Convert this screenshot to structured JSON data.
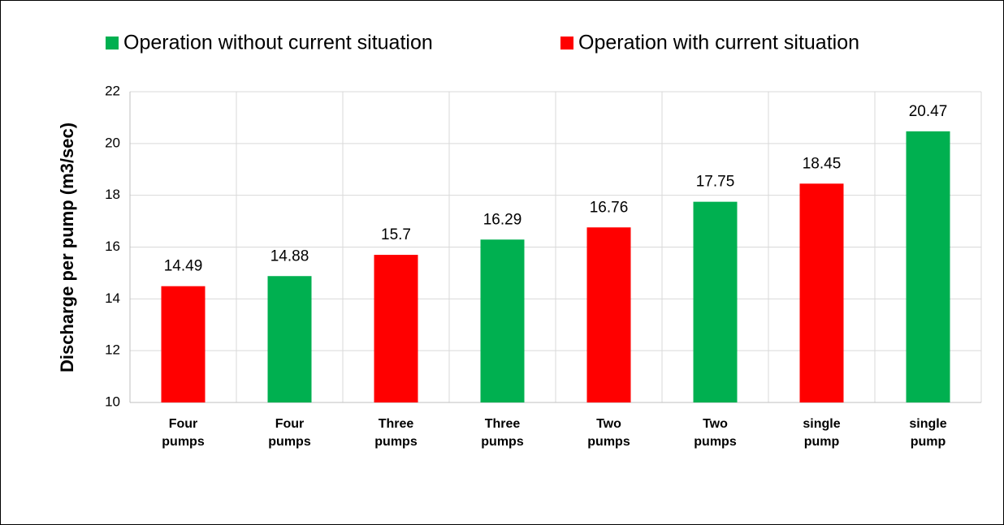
{
  "chart_data": {
    "type": "bar",
    "y_label": "Discharge  per  pump (m3/sec)",
    "categories": [
      "Four pumps",
      "Four pumps",
      "Three pumps",
      "Three pumps",
      "Two pumps",
      "Two pumps",
      "single pump",
      "single pump"
    ],
    "series": [
      {
        "name": "Operation without current situation",
        "color": "#00b050",
        "values": [
          null,
          14.88,
          null,
          16.29,
          null,
          17.75,
          null,
          20.47
        ]
      },
      {
        "name": "Operation with current situation",
        "color": "#ff0000",
        "values": [
          14.49,
          null,
          15.7,
          null,
          16.76,
          null,
          18.45,
          null
        ]
      }
    ],
    "ylim": [
      10,
      22
    ],
    "yticks": [
      10,
      12,
      14,
      16,
      18,
      20,
      22
    ],
    "grid": true,
    "legend": "top"
  }
}
